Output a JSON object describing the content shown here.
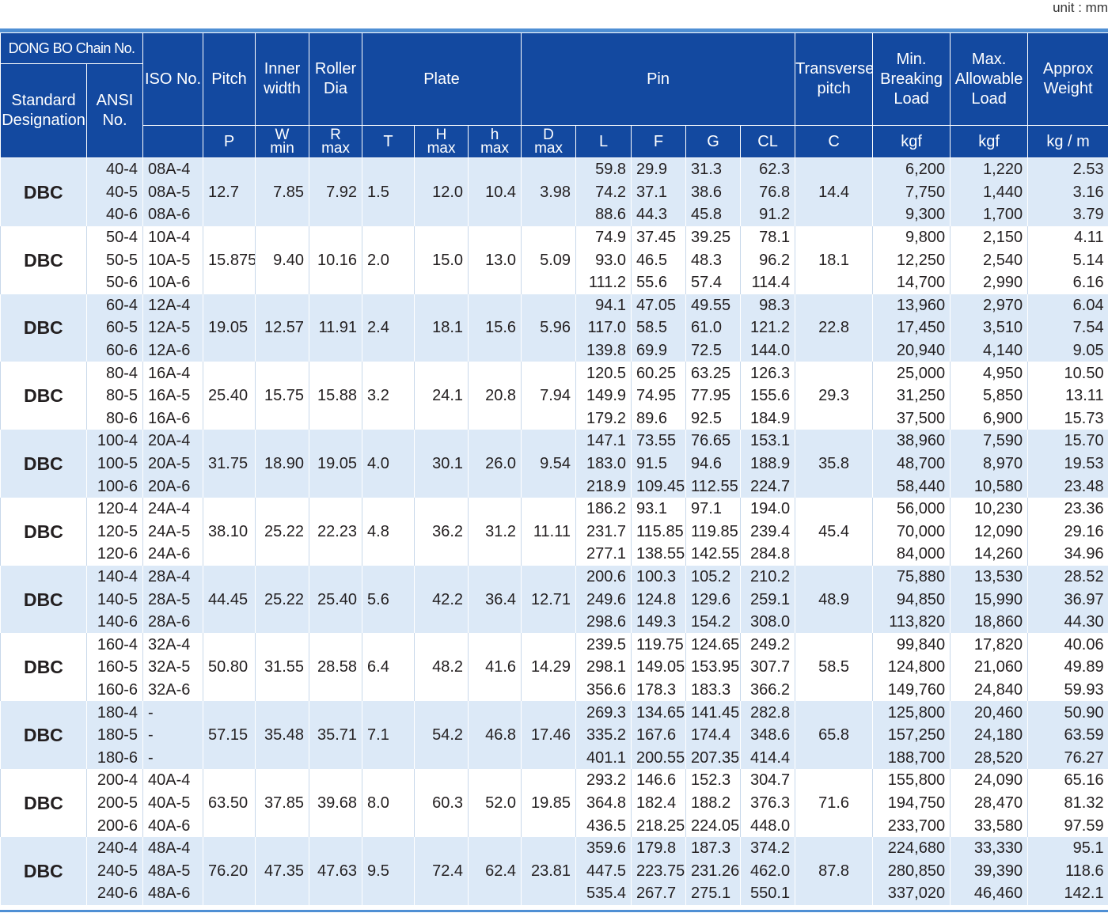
{
  "unit_label": "unit : mm",
  "headers": {
    "brand": "DONG BO Chain No.",
    "standard": "Standard Designation",
    "ansi": "ANSI No.",
    "iso": "ISO No.",
    "pitch": "Pitch",
    "inner_width": "Inner width",
    "roller_dia": "Roller Dia",
    "plate": "Plate",
    "pin": "Pin",
    "transverse": "Transverse pitch",
    "min_breaking": "Min. Breaking Load",
    "max_allowable": "Max. Allowable Load",
    "approx_weight": "Approx Weight",
    "sym_p": "P",
    "sym_w": "W",
    "sym_w_sub": "min",
    "sym_r": "R",
    "sym_r_sub": "max",
    "sym_t": "T",
    "sym_H": "H",
    "sym_H_sub": "max",
    "sym_h": "h",
    "sym_h_sub": "max",
    "sym_d": "D",
    "sym_d_sub": "max",
    "sym_l": "L",
    "sym_f": "F",
    "sym_g": "G",
    "sym_cl": "CL",
    "sym_c": "C",
    "sym_kgf1": "kgf",
    "sym_kgf2": "kgf",
    "sym_kgm": "kg / m"
  },
  "groups": [
    {
      "std": "DBC",
      "p": "12.7",
      "w": "7.85",
      "r": "7.92",
      "t": "1.5",
      "H": "12.0",
      "h": "10.4",
      "d": "3.98",
      "c": "14.4",
      "rows": [
        [
          "40-4",
          "08A-4",
          "59.8",
          "29.9",
          "31.3",
          "62.3",
          "6,200",
          "1,220",
          "2.53"
        ],
        [
          "40-5",
          "08A-5",
          "74.2",
          "37.1",
          "38.6",
          "76.8",
          "7,750",
          "1,440",
          "3.16"
        ],
        [
          "40-6",
          "08A-6",
          "88.6",
          "44.3",
          "45.8",
          "91.2",
          "9,300",
          "1,700",
          "3.79"
        ]
      ]
    },
    {
      "std": "DBC",
      "p": "15.875",
      "w": "9.40",
      "r": "10.16",
      "t": "2.0",
      "H": "15.0",
      "h": "13.0",
      "d": "5.09",
      "c": "18.1",
      "rows": [
        [
          "50-4",
          "10A-4",
          "74.9",
          "37.45",
          "39.25",
          "78.1",
          "9,800",
          "2,150",
          "4.11"
        ],
        [
          "50-5",
          "10A-5",
          "93.0",
          "46.5",
          "48.3",
          "96.2",
          "12,250",
          "2,540",
          "5.14"
        ],
        [
          "50-6",
          "10A-6",
          "111.2",
          "55.6",
          "57.4",
          "114.4",
          "14,700",
          "2,990",
          "6.16"
        ]
      ]
    },
    {
      "std": "DBC",
      "p": "19.05",
      "w": "12.57",
      "r": "11.91",
      "t": "2.4",
      "H": "18.1",
      "h": "15.6",
      "d": "5.96",
      "c": "22.8",
      "rows": [
        [
          "60-4",
          "12A-4",
          "94.1",
          "47.05",
          "49.55",
          "98.3",
          "13,960",
          "2,970",
          "6.04"
        ],
        [
          "60-5",
          "12A-5",
          "117.0",
          "58.5",
          "61.0",
          "121.2",
          "17,450",
          "3,510",
          "7.54"
        ],
        [
          "60-6",
          "12A-6",
          "139.8",
          "69.9",
          "72.5",
          "144.0",
          "20,940",
          "4,140",
          "9.05"
        ]
      ]
    },
    {
      "std": "DBC",
      "p": "25.40",
      "w": "15.75",
      "r": "15.88",
      "t": "3.2",
      "H": "24.1",
      "h": "20.8",
      "d": "7.94",
      "c": "29.3",
      "rows": [
        [
          "80-4",
          "16A-4",
          "120.5",
          "60.25",
          "63.25",
          "126.3",
          "25,000",
          "4,950",
          "10.50"
        ],
        [
          "80-5",
          "16A-5",
          "149.9",
          "74.95",
          "77.95",
          "155.6",
          "31,250",
          "5,850",
          "13.11"
        ],
        [
          "80-6",
          "16A-6",
          "179.2",
          "89.6",
          "92.5",
          "184.9",
          "37,500",
          "6,900",
          "15.73"
        ]
      ]
    },
    {
      "std": "DBC",
      "p": "31.75",
      "w": "18.90",
      "r": "19.05",
      "t": "4.0",
      "H": "30.1",
      "h": "26.0",
      "d": "9.54",
      "c": "35.8",
      "rows": [
        [
          "100-4",
          "20A-4",
          "147.1",
          "73.55",
          "76.65",
          "153.1",
          "38,960",
          "7,590",
          "15.70"
        ],
        [
          "100-5",
          "20A-5",
          "183.0",
          "91.5",
          "94.6",
          "188.9",
          "48,700",
          "8,970",
          "19.53"
        ],
        [
          "100-6",
          "20A-6",
          "218.9",
          "109.45",
          "112.55",
          "224.7",
          "58,440",
          "10,580",
          "23.48"
        ]
      ]
    },
    {
      "std": "DBC",
      "p": "38.10",
      "w": "25.22",
      "r": "22.23",
      "t": "4.8",
      "H": "36.2",
      "h": "31.2",
      "d": "11.11",
      "c": "45.4",
      "rows": [
        [
          "120-4",
          "24A-4",
          "186.2",
          "93.1",
          "97.1",
          "194.0",
          "56,000",
          "10,230",
          "23.36"
        ],
        [
          "120-5",
          "24A-5",
          "231.7",
          "115.85",
          "119.85",
          "239.4",
          "70,000",
          "12,090",
          "29.16"
        ],
        [
          "120-6",
          "24A-6",
          "277.1",
          "138.55",
          "142.55",
          "284.8",
          "84,000",
          "14,260",
          "34.96"
        ]
      ]
    },
    {
      "std": "DBC",
      "p": "44.45",
      "w": "25.22",
      "r": "25.40",
      "t": "5.6",
      "H": "42.2",
      "h": "36.4",
      "d": "12.71",
      "c": "48.9",
      "rows": [
        [
          "140-4",
          "28A-4",
          "200.6",
          "100.3",
          "105.2",
          "210.2",
          "75,880",
          "13,530",
          "28.52"
        ],
        [
          "140-5",
          "28A-5",
          "249.6",
          "124.8",
          "129.6",
          "259.1",
          "94,850",
          "15,990",
          "36.97"
        ],
        [
          "140-6",
          "28A-6",
          "298.6",
          "149.3",
          "154.2",
          "308.0",
          "113,820",
          "18,860",
          "44.30"
        ]
      ]
    },
    {
      "std": "DBC",
      "p": "50.80",
      "w": "31.55",
      "r": "28.58",
      "t": "6.4",
      "H": "48.2",
      "h": "41.6",
      "d": "14.29",
      "c": "58.5",
      "rows": [
        [
          "160-4",
          "32A-4",
          "239.5",
          "119.75",
          "124.65",
          "249.2",
          "99,840",
          "17,820",
          "40.06"
        ],
        [
          "160-5",
          "32A-5",
          "298.1",
          "149.05",
          "153.95",
          "307.7",
          "124,800",
          "21,060",
          "49.89"
        ],
        [
          "160-6",
          "32A-6",
          "356.6",
          "178.3",
          "183.3",
          "366.2",
          "149,760",
          "24,840",
          "59.93"
        ]
      ]
    },
    {
      "std": "DBC",
      "p": "57.15",
      "w": "35.48",
      "r": "35.71",
      "t": "7.1",
      "H": "54.2",
      "h": "46.8",
      "d": "17.46",
      "c": "65.8",
      "rows": [
        [
          "180-4",
          "-",
          "269.3",
          "134.65",
          "141.45",
          "282.8",
          "125,800",
          "20,460",
          "50.90"
        ],
        [
          "180-5",
          "-",
          "335.2",
          "167.6",
          "174.4",
          "348.6",
          "157,250",
          "24,180",
          "63.59"
        ],
        [
          "180-6",
          "-",
          "401.1",
          "200.55",
          "207.35",
          "414.4",
          "188,700",
          "28,520",
          "76.27"
        ]
      ]
    },
    {
      "std": "DBC",
      "p": "63.50",
      "w": "37.85",
      "r": "39.68",
      "t": "8.0",
      "H": "60.3",
      "h": "52.0",
      "d": "19.85",
      "c": "71.6",
      "rows": [
        [
          "200-4",
          "40A-4",
          "293.2",
          "146.6",
          "152.3",
          "304.7",
          "155,800",
          "24,090",
          "65.16"
        ],
        [
          "200-5",
          "40A-5",
          "364.8",
          "182.4",
          "188.2",
          "376.3",
          "194,750",
          "28,470",
          "81.32"
        ],
        [
          "200-6",
          "40A-6",
          "436.5",
          "218.25",
          "224.05",
          "448.0",
          "233,700",
          "33,580",
          "97.59"
        ]
      ]
    },
    {
      "std": "DBC",
      "p": "76.20",
      "w": "47.35",
      "r": "47.63",
      "t": "9.5",
      "H": "72.4",
      "h": "62.4",
      "d": "23.81",
      "c": "87.8",
      "rows": [
        [
          "240-4",
          "48A-4",
          "359.6",
          "179.8",
          "187.3",
          "374.2",
          "224,680",
          "33,330",
          "95.1"
        ],
        [
          "240-5",
          "48A-5",
          "447.5",
          "223.75",
          "231.26",
          "462.0",
          "280,850",
          "39,390",
          "118.6"
        ],
        [
          "240-6",
          "48A-6",
          "535.4",
          "267.7",
          "275.1",
          "550.1",
          "337,020",
          "46,460",
          "142.1"
        ]
      ]
    }
  ]
}
